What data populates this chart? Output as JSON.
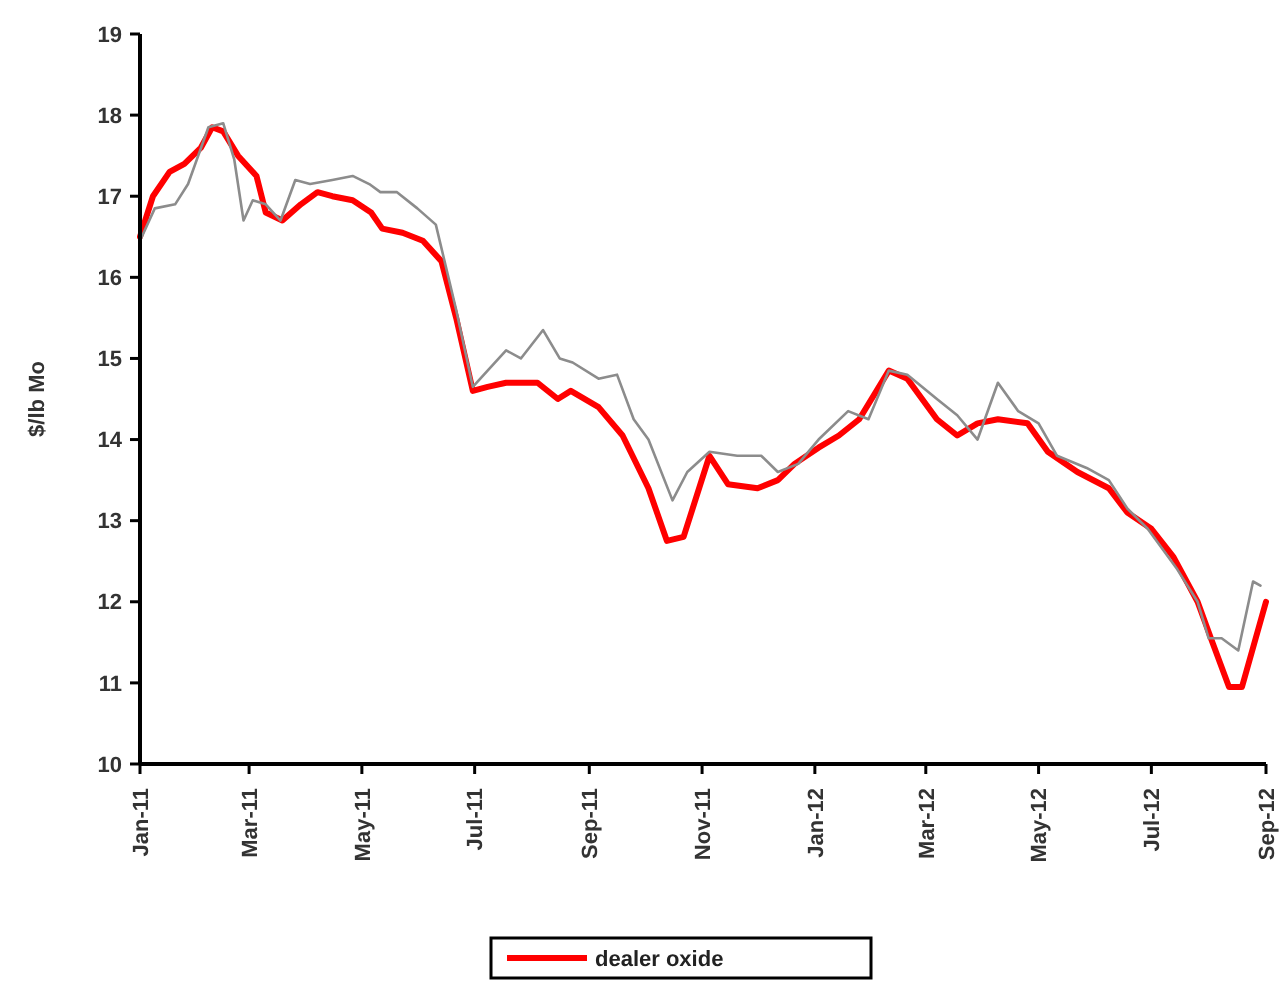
{
  "chart_data": {
    "type": "line",
    "ylabel": "$/lb Mo",
    "xlim": [
      "2011-01",
      "2012-09"
    ],
    "ylim": [
      10,
      19
    ],
    "yticks": [
      10,
      11,
      12,
      13,
      14,
      15,
      16,
      17,
      18,
      19
    ],
    "xticks": [
      {
        "value": "2011-01",
        "label": "Jan-11"
      },
      {
        "value": "2011-03",
        "label": "Mar-11"
      },
      {
        "value": "2011-05",
        "label": "May-11"
      },
      {
        "value": "2011-07",
        "label": "Jul-11"
      },
      {
        "value": "2011-09",
        "label": "Sep-11"
      },
      {
        "value": "2011-11",
        "label": "Nov-11"
      },
      {
        "value": "2012-01",
        "label": "Jan-12"
      },
      {
        "value": "2012-03",
        "label": "Mar-12"
      },
      {
        "value": "2012-05",
        "label": "May-12"
      },
      {
        "value": "2012-07",
        "label": "Jul-12"
      },
      {
        "value": "2012-09",
        "label": "Sep-12"
      }
    ],
    "legend": "bottom",
    "grid": false,
    "series": [
      {
        "name": "dealer oxide",
        "color": "#ff0000",
        "x": [
          "2011-01-01",
          "2011-01-08",
          "2011-01-17",
          "2011-01-25",
          "2011-02-03",
          "2011-02-09",
          "2011-02-15",
          "2011-02-23",
          "2011-03-05",
          "2011-03-10",
          "2011-03-19",
          "2011-03-29",
          "2011-04-07",
          "2011-04-15",
          "2011-04-26",
          "2011-05-06",
          "2011-05-12",
          "2011-05-23",
          "2011-06-03",
          "2011-06-13",
          "2011-06-21",
          "2011-06-30",
          "2011-07-08",
          "2011-07-18",
          "2011-08-04",
          "2011-08-15",
          "2011-08-22",
          "2011-09-06",
          "2011-09-19",
          "2011-10-03",
          "2011-10-13",
          "2011-10-22",
          "2011-11-05",
          "2011-11-15",
          "2011-12-01",
          "2011-12-12",
          "2011-12-21",
          "2012-01-03",
          "2012-01-14",
          "2012-01-25",
          "2012-02-10",
          "2012-02-20",
          "2012-03-07",
          "2012-03-18",
          "2012-03-29",
          "2012-04-09",
          "2012-04-25",
          "2012-05-06",
          "2012-05-22",
          "2012-06-08",
          "2012-06-18",
          "2012-07-01",
          "2012-07-13",
          "2012-07-26",
          "2012-08-03",
          "2012-08-12",
          "2012-08-19",
          "2012-09-01"
        ],
        "values": [
          16.5,
          17.0,
          17.3,
          17.4,
          17.6,
          17.85,
          17.8,
          17.5,
          17.25,
          16.8,
          16.7,
          16.9,
          17.05,
          17.0,
          16.95,
          16.8,
          16.6,
          16.55,
          16.45,
          16.2,
          15.5,
          14.6,
          14.65,
          14.7,
          14.7,
          14.5,
          14.6,
          14.4,
          14.05,
          13.4,
          12.75,
          12.8,
          13.8,
          13.45,
          13.4,
          13.5,
          13.7,
          13.9,
          14.05,
          14.25,
          14.85,
          14.75,
          14.25,
          14.05,
          14.2,
          14.25,
          14.2,
          13.85,
          13.6,
          13.4,
          13.1,
          12.9,
          12.55,
          12.0,
          11.5,
          10.95,
          10.95,
          12.0
        ]
      },
      {
        "color": "#8c8c8c",
        "x": [
          "2011-01-01",
          "2011-01-09",
          "2011-01-20",
          "2011-01-27",
          "2011-02-07",
          "2011-02-15",
          "2011-02-21",
          "2011-02-26",
          "2011-03-03",
          "2011-03-10",
          "2011-03-18",
          "2011-03-26",
          "2011-04-03",
          "2011-04-15",
          "2011-04-26",
          "2011-05-05",
          "2011-05-11",
          "2011-05-20",
          "2011-05-31",
          "2011-06-10",
          "2011-06-21",
          "2011-06-30",
          "2011-07-08",
          "2011-07-18",
          "2011-07-26",
          "2011-08-07",
          "2011-08-16",
          "2011-08-23",
          "2011-09-06",
          "2011-09-16",
          "2011-09-25",
          "2011-10-03",
          "2011-10-16",
          "2011-10-24",
          "2011-11-05",
          "2011-11-20",
          "2011-12-03",
          "2011-12-12",
          "2011-12-23",
          "2012-01-03",
          "2012-01-19",
          "2012-01-30",
          "2012-02-10",
          "2012-02-20",
          "2012-03-07",
          "2012-03-18",
          "2012-03-29",
          "2012-04-09",
          "2012-04-20",
          "2012-05-01",
          "2012-05-11",
          "2012-05-27",
          "2012-06-08",
          "2012-06-18",
          "2012-06-29",
          "2012-07-15",
          "2012-07-26",
          "2012-08-01",
          "2012-08-08",
          "2012-08-17",
          "2012-08-25",
          "2012-08-29"
        ],
        "values": [
          16.45,
          16.85,
          16.9,
          17.15,
          17.85,
          17.9,
          17.45,
          16.7,
          16.95,
          16.9,
          16.7,
          17.2,
          17.15,
          17.2,
          17.25,
          17.15,
          17.05,
          17.05,
          16.85,
          16.65,
          15.6,
          14.65,
          14.85,
          15.1,
          15.0,
          15.35,
          15.0,
          14.95,
          14.75,
          14.8,
          14.25,
          14.0,
          13.25,
          13.6,
          13.85,
          13.8,
          13.8,
          13.6,
          13.7,
          14.0,
          14.35,
          14.25,
          14.85,
          14.8,
          14.5,
          14.3,
          14.0,
          14.7,
          14.35,
          14.2,
          13.8,
          13.65,
          13.5,
          13.15,
          12.9,
          12.4,
          12.0,
          11.55,
          11.55,
          11.4,
          12.25,
          12.2
        ]
      }
    ]
  }
}
